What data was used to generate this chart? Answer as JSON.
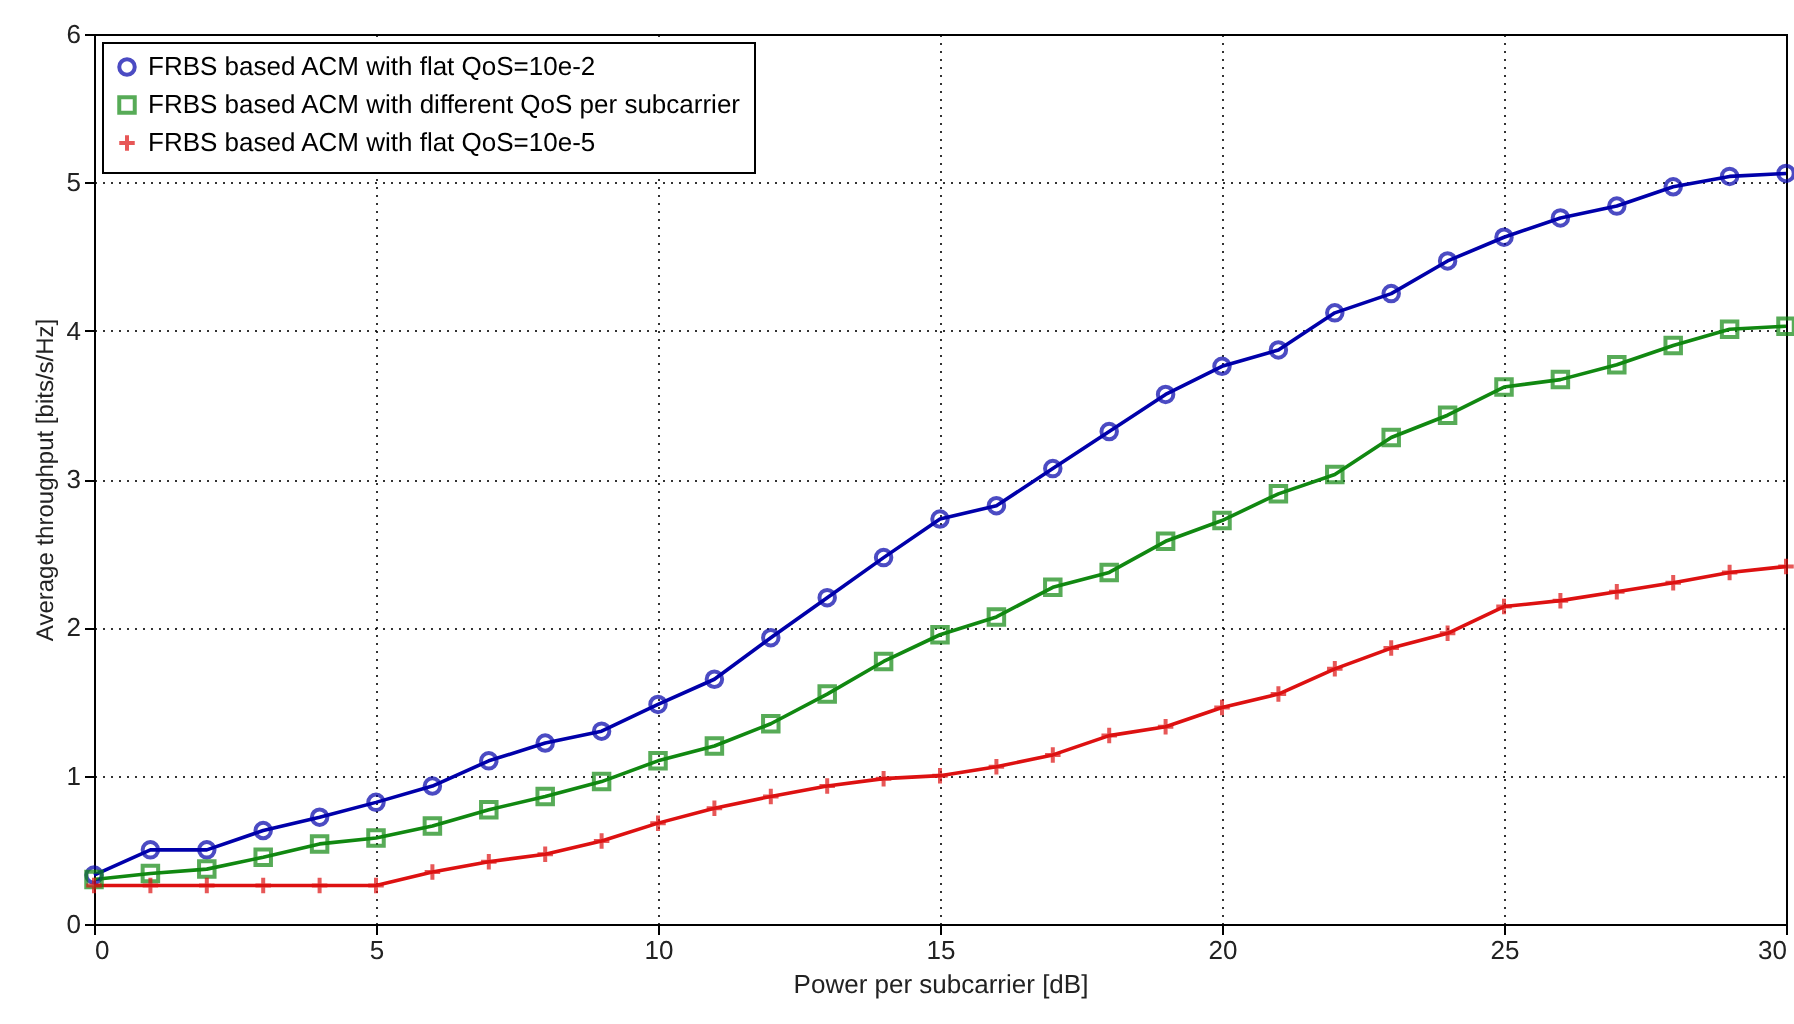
{
  "chart_data": {
    "type": "line",
    "xlabel": "Power per subcarrier [dB]",
    "ylabel": "Average throughput [bits/s/Hz]",
    "x": [
      0,
      1,
      2,
      3,
      4,
      5,
      6,
      7,
      8,
      9,
      10,
      11,
      12,
      13,
      14,
      15,
      16,
      17,
      18,
      19,
      20,
      21,
      22,
      23,
      24,
      25,
      26,
      27,
      28,
      29,
      30
    ],
    "xlim": [
      0,
      30
    ],
    "xticks": [
      0,
      5,
      10,
      15,
      20,
      25,
      30
    ],
    "ylim": [
      0,
      6
    ],
    "yticks": [
      0,
      1,
      2,
      3,
      4,
      5,
      6
    ],
    "grid": true,
    "legend": "top left",
    "line_style": "solid",
    "series": [
      {
        "name": "FRBS based ACM with flat QoS=10e-2",
        "color": "#0000aa",
        "marker": "circle",
        "values": [
          0.33,
          0.5,
          0.5,
          0.63,
          0.72,
          0.82,
          0.93,
          1.1,
          1.22,
          1.3,
          1.48,
          1.65,
          1.93,
          2.2,
          2.47,
          2.73,
          2.82,
          3.07,
          3.32,
          3.57,
          3.76,
          3.87,
          4.12,
          4.25,
          4.47,
          4.63,
          4.76,
          4.84,
          4.97,
          5.04,
          5.06
        ]
      },
      {
        "name": "FRBS based ACM with different QoS per subcarrier",
        "color": "#118811",
        "marker": "square",
        "values": [
          0.3,
          0.34,
          0.37,
          0.45,
          0.54,
          0.58,
          0.66,
          0.77,
          0.86,
          0.96,
          1.1,
          1.2,
          1.35,
          1.55,
          1.77,
          1.95,
          2.07,
          2.27,
          2.37,
          2.58,
          2.72,
          2.9,
          3.03,
          3.28,
          3.43,
          3.62,
          3.67,
          3.77,
          3.9,
          4.01,
          4.03
        ]
      },
      {
        "name": "FRBS based ACM with flat QoS=10e-5",
        "color": "#dd1111",
        "marker": "cross",
        "values": [
          0.26,
          0.26,
          0.26,
          0.26,
          0.26,
          0.26,
          0.35,
          0.42,
          0.47,
          0.56,
          0.68,
          0.78,
          0.86,
          0.93,
          0.98,
          1.0,
          1.06,
          1.14,
          1.27,
          1.33,
          1.46,
          1.55,
          1.72,
          1.86,
          1.96,
          2.14,
          2.18,
          2.24,
          2.3,
          2.37,
          2.41
        ]
      }
    ]
  }
}
